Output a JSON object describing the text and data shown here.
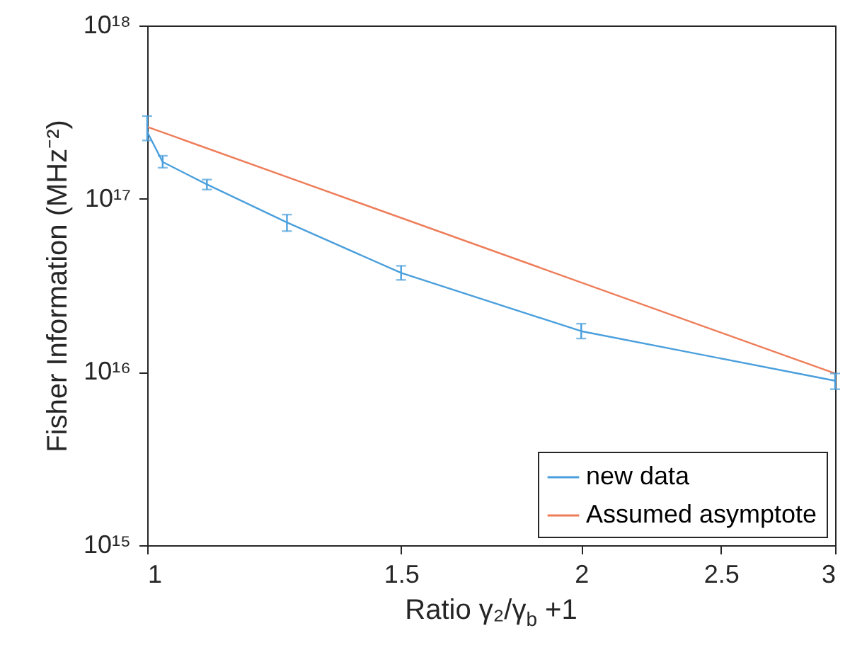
{
  "chart_data": {
    "type": "line",
    "xlabel": "Ratio γ₂/γ$_{b}$ +1",
    "ylabel": "Fisher Information (MHz⁻²)",
    "log": "xy",
    "xlim": [
      1,
      3
    ],
    "xticks": [
      1,
      1.5,
      2,
      2.5,
      3
    ],
    "ylim": [
      1000000000000000.0,
      1e+18
    ],
    "yticks": [
      {
        "value": 1000000000000000.0,
        "label": "10¹⁵"
      },
      {
        "value": 1e+16,
        "label": "10¹⁶"
      },
      {
        "value": 1e+17,
        "label": "10¹⁷"
      },
      {
        "value": 1e+18,
        "label": "10¹⁸"
      }
    ],
    "grid": false,
    "legend": "bottom right",
    "marker": "none",
    "line_style": "solid",
    "series": [
      {
        "name": "new data",
        "color": "#4a9fdc",
        "x": [
          1,
          1.025,
          1.1,
          1.25,
          1.5,
          2,
          3
        ],
        "values": [
          2.43e+17,
          1.63e+17,
          1.21e+17,
          7.3e+16,
          3.73e+16,
          1.72e+16,
          8900000000000000.0
        ],
        "errors": [
          [
            2.17e+17,
            3e+17
          ],
          [
            1.51e+17,
            1.77e+17
          ],
          [
            1.13e+17,
            1.29e+17
          ],
          [
            6.5e+16,
            8.1e+16
          ],
          [
            3.4e+16,
            4.1e+16
          ],
          [
            1.56e+16,
            1.9e+16
          ],
          [
            7950000000000000.0,
            9800000000000000.0
          ]
        ]
      },
      {
        "name": "Assumed asymptote",
        "color": "#ee7d5a",
        "x": [
          1,
          3
        ],
        "values": [
          2.6e+17,
          9800000000000000.0
        ]
      }
    ]
  }
}
